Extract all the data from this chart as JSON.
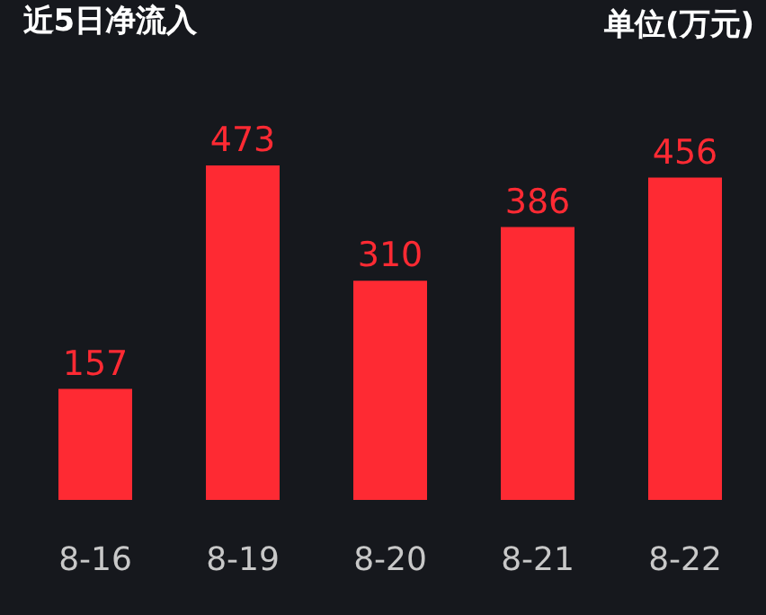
{
  "chart_data": {
    "type": "bar",
    "title": "近5日净流入",
    "annotations": [
      "单位(万元)"
    ],
    "categories": [
      "8-16",
      "8-19",
      "8-20",
      "8-21",
      "8-22"
    ],
    "values": [
      157,
      473,
      310,
      386,
      456
    ],
    "color": "#fe2a33",
    "data_labels": true,
    "grid": false,
    "legend": false
  }
}
